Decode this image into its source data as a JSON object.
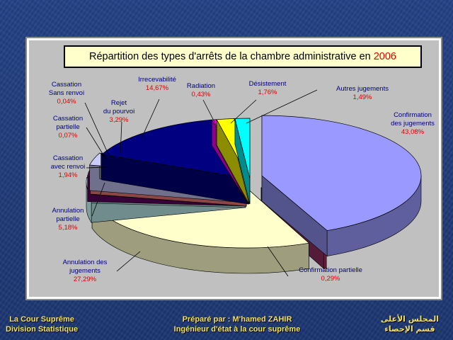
{
  "chart_data": {
    "type": "pie",
    "title": "Répartition des types d'arrêts de la chambre administrative en",
    "title_year": "2006",
    "slices": [
      {
        "label": [
          "Confirmation",
          "des jugements"
        ],
        "value": 43.08,
        "value_label": "43,08%",
        "color": "#9999ff"
      },
      {
        "label": [
          "Confirmation partielle"
        ],
        "value": 0.29,
        "value_label": "0,29%",
        "color": "#993366"
      },
      {
        "label": [
          "Annulation des",
          "jugements"
        ],
        "value": 27.29,
        "value_label": "27,29%",
        "color": "#ffffcc"
      },
      {
        "label": [
          "Annulation",
          "partielle"
        ],
        "value": 5.18,
        "value_label": "5,18%",
        "color": "#ccffff"
      },
      {
        "label": [
          "Cassation",
          "avec renvoi"
        ],
        "value": 1.94,
        "value_label": "1,94%",
        "color": "#660066"
      },
      {
        "label": [
          "Cassation",
          "partielle"
        ],
        "value": 0.07,
        "value_label": "0,07%",
        "color": "#ff8080"
      },
      {
        "label": [
          "Rejet",
          "du pourvoi"
        ],
        "value": 3.29,
        "value_label": "3,29%",
        "color": "#ccccff"
      },
      {
        "label": [
          "Cassation",
          "Sans renvoi"
        ],
        "value": 0.04,
        "value_label": "0,04%",
        "color": "#0066cc"
      },
      {
        "label": [
          "Irrecevabilité"
        ],
        "value": 14.67,
        "value_label": "14,67%",
        "color": "#000080"
      },
      {
        "label": [
          "Radiation"
        ],
        "value": 0.43,
        "value_label": "0,43%",
        "color": "#ff00ff"
      },
      {
        "label": [
          "Désistement"
        ],
        "value": 1.76,
        "value_label": "1,76%",
        "color": "#ffff00"
      },
      {
        "label": [
          "Autres jugements"
        ],
        "value": 1.49,
        "value_label": "1,49%",
        "color": "#00ffff"
      }
    ],
    "label_color": "#000080",
    "value_color": "#e00000"
  },
  "footer": {
    "left": [
      "La Cour Suprême",
      "Division Statistique"
    ],
    "center": [
      "Préparé par : M'hamed ZAHIR",
      "Ingénieur d'état à la cour suprême"
    ],
    "right": [
      "المجلس الأعلى",
      "قسم الإحصاء"
    ]
  }
}
